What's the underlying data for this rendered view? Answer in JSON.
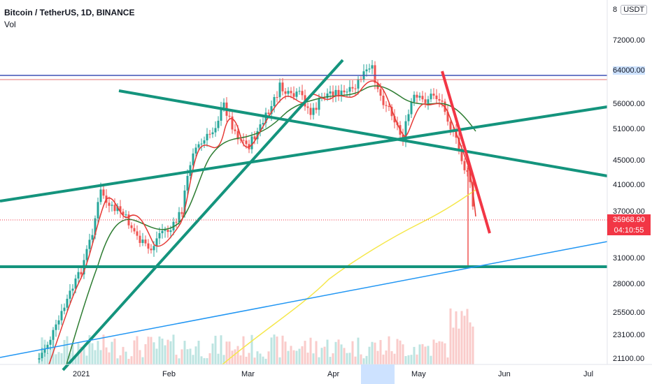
{
  "header": {
    "symbol_title": "Bitcoin / TetherUS, 1D, BINANCE",
    "indicator": "Vol"
  },
  "price_axis": {
    "currency_prefix": "8",
    "currency": "USDT",
    "ticks": [
      "72000.00",
      "64000.00",
      "56000.00",
      "51000.00",
      "45000.00",
      "41000.00",
      "37000.00",
      "31000.00",
      "28000.00",
      "25500.00",
      "23100.00",
      "21100.00"
    ],
    "current_price": "35968.90",
    "countdown": "04:10:55"
  },
  "time_axis": {
    "labels": [
      "2021",
      "Feb",
      "Mar",
      "Apr",
      "May",
      "Jun",
      "Jul"
    ]
  },
  "colors": {
    "teal": "#14947d",
    "red_line": "#f23645",
    "blue_band": "#2962ff",
    "yellow_ma": "#f7e94d",
    "blue_trend": "#2196f3",
    "candle_up": "#26a69a",
    "candle_down": "#ef5350"
  }
}
